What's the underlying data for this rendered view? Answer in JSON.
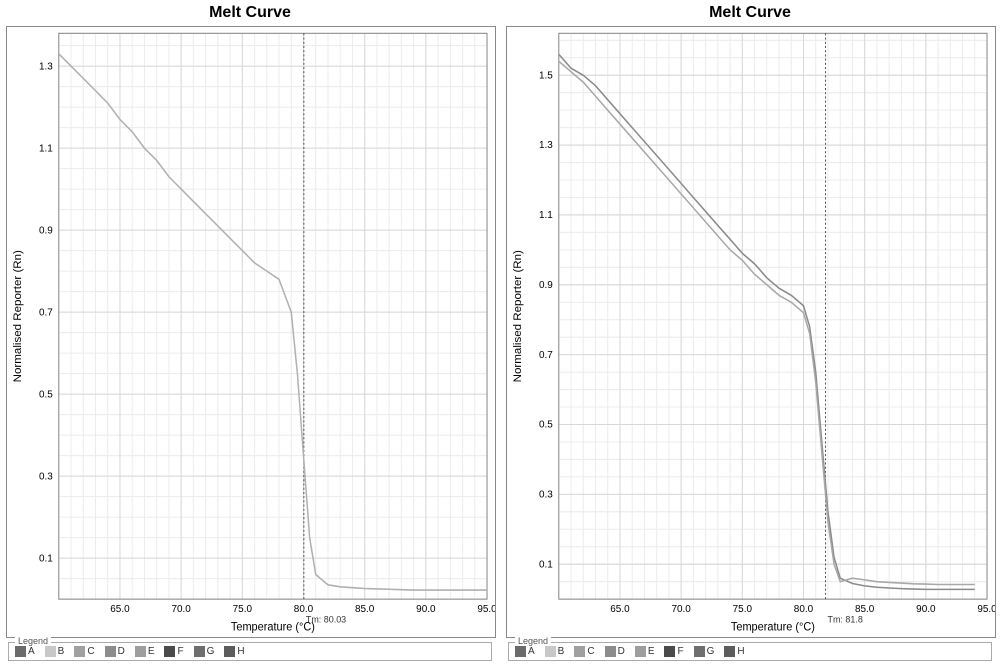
{
  "panels": [
    {
      "title": "Melt Curve",
      "type": "line",
      "xlabel": "Temperature (°C)",
      "ylabel": "Normalised Reporter (Rn)",
      "background_color": "#ffffff",
      "grid_color": "#d8d8d8",
      "grid_minor_color": "#ececec",
      "border_color": "#888888",
      "xlim": [
        60,
        95
      ],
      "ylim": [
        0,
        1.38
      ],
      "xticks": [
        65,
        70,
        75,
        80,
        85,
        90,
        95
      ],
      "yticks": [
        0.1,
        0.3,
        0.5,
        0.7,
        0.9,
        1.1,
        1.3
      ],
      "x_minor_step": 1,
      "y_minor_step": 0.05,
      "tm_line": 80.03,
      "tm_label": "Tm: 80.03",
      "curves": [
        {
          "color": "#b0b0b0",
          "width": 1.5,
          "points": [
            [
              60,
              1.33
            ],
            [
              61,
              1.3
            ],
            [
              62,
              1.27
            ],
            [
              63,
              1.24
            ],
            [
              64,
              1.21
            ],
            [
              65,
              1.17
            ],
            [
              66,
              1.14
            ],
            [
              67,
              1.1
            ],
            [
              68,
              1.07
            ],
            [
              69,
              1.03
            ],
            [
              70,
              1.0
            ],
            [
              71,
              0.97
            ],
            [
              72,
              0.94
            ],
            [
              73,
              0.91
            ],
            [
              74,
              0.88
            ],
            [
              75,
              0.85
            ],
            [
              76,
              0.82
            ],
            [
              77,
              0.8
            ],
            [
              78,
              0.78
            ],
            [
              79,
              0.7
            ],
            [
              79.5,
              0.55
            ],
            [
              80,
              0.35
            ],
            [
              80.5,
              0.15
            ],
            [
              81,
              0.06
            ],
            [
              82,
              0.035
            ],
            [
              83,
              0.03
            ],
            [
              84,
              0.028
            ],
            [
              85,
              0.026
            ],
            [
              86,
              0.025
            ],
            [
              87,
              0.024
            ],
            [
              88,
              0.023
            ],
            [
              89,
              0.022
            ],
            [
              90,
              0.022
            ],
            [
              91,
              0.022
            ],
            [
              92,
              0.022
            ],
            [
              93,
              0.022
            ],
            [
              94,
              0.022
            ],
            [
              95,
              0.022
            ]
          ]
        }
      ],
      "title_fontsize": 16,
      "label_fontsize": 11,
      "tick_fontsize": 10
    },
    {
      "title": "Melt Curve",
      "type": "line",
      "xlabel": "Temperature (°C)",
      "ylabel": "Normalised Reporter (Rn)",
      "background_color": "#ffffff",
      "grid_color": "#d8d8d8",
      "grid_minor_color": "#ececec",
      "border_color": "#888888",
      "xlim": [
        60,
        95
      ],
      "ylim": [
        0,
        1.62
      ],
      "xticks": [
        65,
        70,
        75,
        80,
        85,
        90,
        95
      ],
      "yticks": [
        0.1,
        0.3,
        0.5,
        0.7,
        0.9,
        1.1,
        1.3,
        1.5
      ],
      "x_minor_step": 1,
      "y_minor_step": 0.05,
      "tm_line": 81.8,
      "tm_label": "Tm: 81.8",
      "curves": [
        {
          "color": "#8a8a8a",
          "width": 1.5,
          "points": [
            [
              60,
              1.56
            ],
            [
              61,
              1.52
            ],
            [
              62,
              1.5
            ],
            [
              63,
              1.47
            ],
            [
              64,
              1.43
            ],
            [
              65,
              1.39
            ],
            [
              66,
              1.35
            ],
            [
              67,
              1.31
            ],
            [
              68,
              1.27
            ],
            [
              69,
              1.23
            ],
            [
              70,
              1.19
            ],
            [
              71,
              1.15
            ],
            [
              72,
              1.11
            ],
            [
              73,
              1.07
            ],
            [
              74,
              1.03
            ],
            [
              75,
              0.99
            ],
            [
              76,
              0.96
            ],
            [
              77,
              0.92
            ],
            [
              78,
              0.89
            ],
            [
              79,
              0.87
            ],
            [
              80,
              0.84
            ],
            [
              80.5,
              0.78
            ],
            [
              81,
              0.65
            ],
            [
              81.5,
              0.45
            ],
            [
              82,
              0.25
            ],
            [
              82.5,
              0.12
            ],
            [
              83,
              0.06
            ],
            [
              84,
              0.045
            ],
            [
              85,
              0.038
            ],
            [
              86,
              0.034
            ],
            [
              87,
              0.032
            ],
            [
              88,
              0.03
            ],
            [
              89,
              0.029
            ],
            [
              90,
              0.028
            ],
            [
              91,
              0.028
            ],
            [
              92,
              0.028
            ],
            [
              93,
              0.028
            ],
            [
              94,
              0.028
            ]
          ]
        },
        {
          "color": "#a8a8a8",
          "width": 1.5,
          "points": [
            [
              60,
              1.54
            ],
            [
              61,
              1.51
            ],
            [
              62,
              1.48
            ],
            [
              63,
              1.44
            ],
            [
              64,
              1.4
            ],
            [
              65,
              1.36
            ],
            [
              66,
              1.32
            ],
            [
              67,
              1.28
            ],
            [
              68,
              1.24
            ],
            [
              69,
              1.2
            ],
            [
              70,
              1.16
            ],
            [
              71,
              1.12
            ],
            [
              72,
              1.08
            ],
            [
              73,
              1.04
            ],
            [
              74,
              1.0
            ],
            [
              75,
              0.97
            ],
            [
              76,
              0.93
            ],
            [
              77,
              0.9
            ],
            [
              78,
              0.87
            ],
            [
              79,
              0.85
            ],
            [
              80,
              0.82
            ],
            [
              80.5,
              0.76
            ],
            [
              81,
              0.62
            ],
            [
              81.5,
              0.42
            ],
            [
              82,
              0.22
            ],
            [
              82.5,
              0.1
            ],
            [
              83,
              0.05
            ],
            [
              84,
              0.06
            ],
            [
              85,
              0.055
            ],
            [
              86,
              0.05
            ],
            [
              87,
              0.048
            ],
            [
              88,
              0.046
            ],
            [
              89,
              0.044
            ],
            [
              90,
              0.043
            ],
            [
              91,
              0.042
            ],
            [
              92,
              0.042
            ],
            [
              93,
              0.042
            ],
            [
              94,
              0.042
            ]
          ]
        }
      ],
      "title_fontsize": 16,
      "label_fontsize": 11,
      "tick_fontsize": 10
    }
  ],
  "legend": {
    "title": "Legend",
    "items": [
      {
        "label": "A",
        "color": "#6b6b6b"
      },
      {
        "label": "B",
        "color": "#c8c8c8"
      },
      {
        "label": "C",
        "color": "#a0a0a0"
      },
      {
        "label": "D",
        "color": "#8c8c8c"
      },
      {
        "label": "E",
        "color": "#9e9e9e"
      },
      {
        "label": "F",
        "color": "#4a4a4a"
      },
      {
        "label": "G",
        "color": "#6e6e6e"
      },
      {
        "label": "H",
        "color": "#5c5c5c"
      }
    ]
  }
}
